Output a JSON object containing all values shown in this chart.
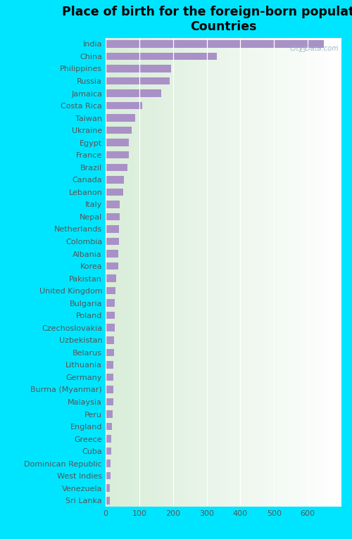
{
  "title": "Place of birth for the foreign-born population -\nCountries",
  "countries": [
    "India",
    "China",
    "Philippines",
    "Russia",
    "Jamaica",
    "Costa Rica",
    "Taiwan",
    "Ukraine",
    "Egypt",
    "France",
    "Brazil",
    "Canada",
    "Lebanon",
    "Italy",
    "Nepal",
    "Netherlands",
    "Colombia",
    "Albania",
    "Korea",
    "Pakistan",
    "United Kingdom",
    "Bulgaria",
    "Poland",
    "Czechoslovakia",
    "Uzbekistan",
    "Belarus",
    "Lithuania",
    "Germany",
    "Burma (Myanmar)",
    "Malaysia",
    "Peru",
    "England",
    "Greece",
    "Cuba",
    "Dominican Republic",
    "West Indies",
    "Venezuela",
    "Sri Lanka"
  ],
  "values": [
    648,
    330,
    195,
    190,
    165,
    108,
    88,
    78,
    68,
    68,
    65,
    55,
    52,
    42,
    42,
    40,
    40,
    38,
    38,
    32,
    30,
    28,
    27,
    27,
    25,
    25,
    23,
    23,
    22,
    22,
    20,
    18,
    17,
    16,
    15,
    14,
    13,
    12
  ],
  "bar_color": "#a991c8",
  "background_color_fig": "#00e5ff",
  "xlim": [
    0,
    700
  ],
  "xticks": [
    0,
    100,
    200,
    300,
    400,
    500,
    600
  ],
  "title_fontsize": 12.5,
  "label_fontsize": 8,
  "tick_fontsize": 8,
  "watermark": "City-Data.com"
}
